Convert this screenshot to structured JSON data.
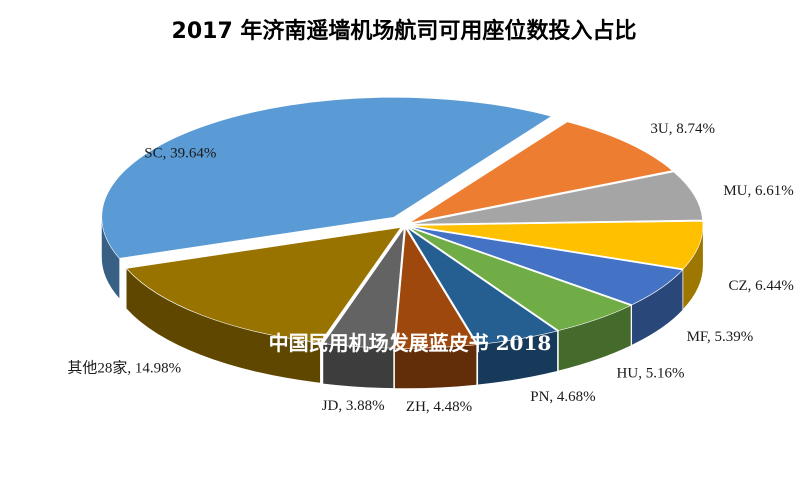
{
  "chart_data": {
    "type": "pie",
    "title": "2017 年济南遥墙机场航司可用座位数投入占比",
    "slices": [
      {
        "label": "SC, 39.64%",
        "value": 39.64,
        "color": "#5B9BD5"
      },
      {
        "label": "3U, 8.74%",
        "value": 8.74,
        "color": "#ED7D31"
      },
      {
        "label": "MU, 6.61%",
        "value": 6.61,
        "color": "#A5A5A5"
      },
      {
        "label": "CZ, 6.44%",
        "value": 6.44,
        "color": "#FFC000"
      },
      {
        "label": "MF, 5.39%",
        "value": 5.39,
        "color": "#4472C4"
      },
      {
        "label": "HU, 5.16%",
        "value": 5.16,
        "color": "#70AD47"
      },
      {
        "label": "PN, 4.68%",
        "value": 4.68,
        "color": "#255E91"
      },
      {
        "label": "ZH, 4.48%",
        "value": 4.48,
        "color": "#9E480E"
      },
      {
        "label": "JD, 3.88%",
        "value": 3.88,
        "color": "#636363"
      },
      {
        "label": "其他28家, 14.98%",
        "value": 14.98,
        "color": "#997300"
      }
    ],
    "watermark": "中国民用机场发展蓝皮书 2018"
  }
}
